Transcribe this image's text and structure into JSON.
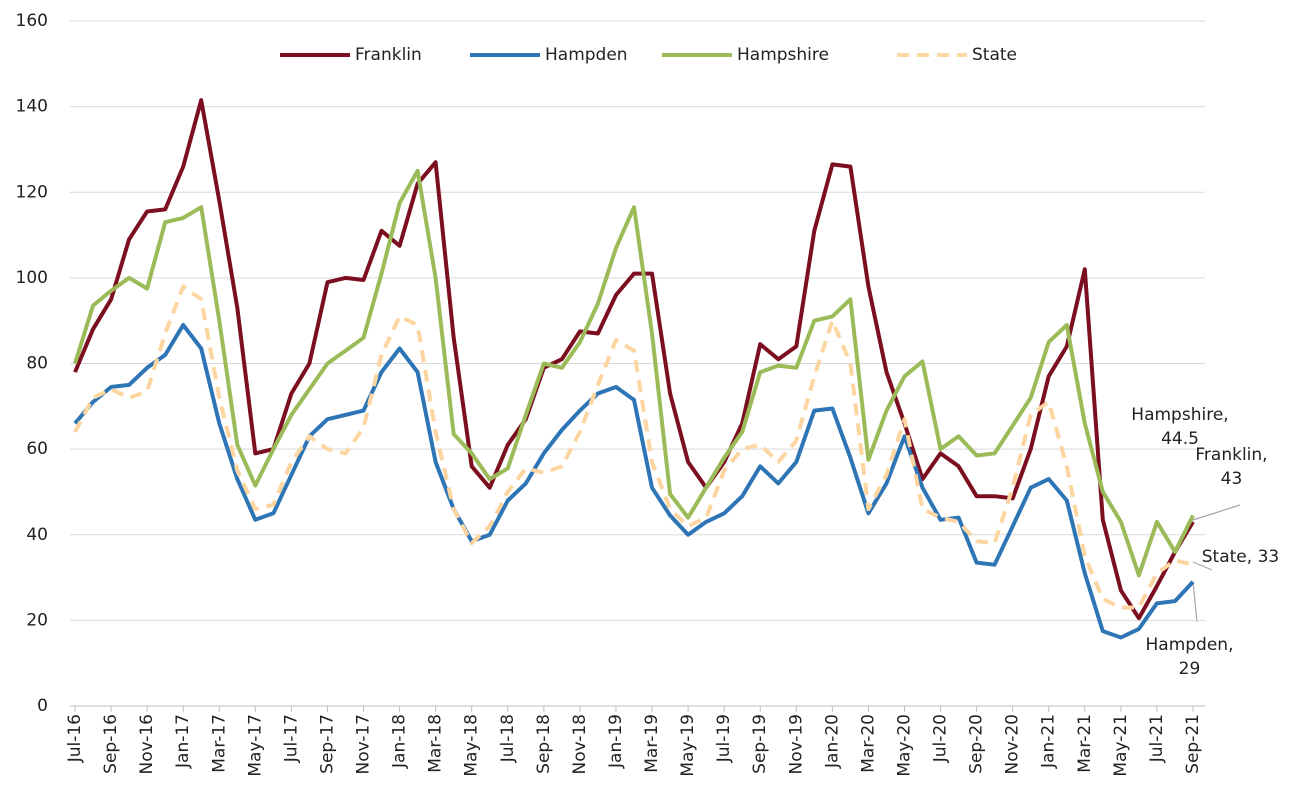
{
  "chart_data": {
    "type": "line",
    "categories": [
      "Jul-16",
      null,
      "Sep-16",
      null,
      "Nov-16",
      null,
      "Jan-17",
      null,
      "Mar-17",
      null,
      "May-17",
      null,
      "Jul-17",
      null,
      "Sep-17",
      null,
      "Nov-17",
      null,
      "Jan-18",
      null,
      "Mar-18",
      null,
      "May-18",
      null,
      "Jul-18",
      null,
      "Sep-18",
      null,
      "Nov-18",
      null,
      "Jan-19",
      null,
      "Mar-19",
      null,
      "May-19",
      null,
      "Jul-19",
      null,
      "Sep-19",
      null,
      "Nov-19",
      null,
      "Jan-20",
      null,
      "Mar-20",
      null,
      "May-20",
      null,
      "Jul-20",
      null,
      "Sep-20",
      null,
      "Nov-20",
      null,
      "Jan-21",
      null,
      "Mar-21",
      null,
      "May-21",
      null,
      "Jul-21",
      null,
      "Sep-21"
    ],
    "series": [
      {
        "name": "Franklin",
        "color": "#7b0e1f",
        "line_style": "solid",
        "values": [
          78,
          88,
          95,
          109,
          115.5,
          116,
          126,
          141.5,
          118,
          93,
          59,
          60,
          73,
          80,
          99,
          100,
          99.5,
          111,
          107.5,
          122,
          127,
          86,
          56,
          51,
          61,
          67,
          79,
          81,
          87.5,
          87,
          96,
          101,
          101,
          73,
          57,
          51,
          57,
          66,
          84.5,
          81,
          84,
          111,
          126.5,
          126,
          98,
          78,
          66,
          53,
          59,
          56,
          49,
          49,
          48.5,
          60,
          77,
          84,
          102,
          43.5,
          27,
          20.5,
          28,
          36,
          43
        ],
        "value_labels": [
          null,
          null,
          null,
          null,
          null,
          null,
          null,
          null,
          null,
          null,
          null,
          null,
          null,
          null,
          null,
          null,
          null,
          null,
          null,
          null,
          null,
          null,
          null,
          null,
          null,
          null,
          null,
          null,
          null,
          null,
          null,
          null,
          null,
          null,
          null,
          null,
          null,
          null,
          null,
          null,
          null,
          null,
          null,
          null,
          null,
          null,
          null,
          null,
          null,
          null,
          null,
          null,
          null,
          null,
          null,
          null,
          null,
          null,
          null,
          null,
          null,
          null,
          "Franklin, 43"
        ]
      },
      {
        "name": "Hampden",
        "color": "#2e75b6",
        "line_style": "solid",
        "values": [
          66,
          71,
          74.5,
          75,
          79,
          82,
          89,
          83.5,
          66,
          53,
          43.5,
          45,
          54,
          63,
          67,
          68,
          69,
          78,
          83.5,
          78,
          57,
          46,
          38.5,
          40,
          48,
          52,
          59,
          64.5,
          69,
          73,
          74.5,
          71.5,
          51,
          44.5,
          40,
          43,
          45,
          49,
          56,
          52,
          57,
          69,
          69.5,
          58,
          45,
          52,
          63,
          51,
          43.5,
          44,
          33.5,
          33,
          42,
          51,
          53,
          48,
          31,
          17.5,
          16,
          18,
          24,
          24.5,
          29
        ],
        "value_labels": [
          null,
          null,
          null,
          null,
          null,
          null,
          null,
          null,
          null,
          null,
          null,
          null,
          null,
          null,
          null,
          null,
          null,
          null,
          null,
          null,
          null,
          null,
          null,
          null,
          null,
          null,
          null,
          null,
          null,
          null,
          null,
          null,
          null,
          null,
          null,
          null,
          null,
          null,
          null,
          null,
          null,
          null,
          null,
          null,
          null,
          null,
          null,
          null,
          null,
          null,
          null,
          null,
          null,
          null,
          null,
          null,
          null,
          null,
          null,
          null,
          null,
          null,
          "Hampden, 29"
        ]
      },
      {
        "name": "Hampshire",
        "color": "#9bbb59",
        "line_style": "solid",
        "values": [
          80,
          93.5,
          97,
          100,
          97.5,
          113,
          114,
          116.5,
          90,
          61,
          51.5,
          60,
          68,
          74,
          80,
          83,
          86,
          101,
          117.5,
          125,
          100,
          63.5,
          59,
          53,
          55.5,
          68,
          80,
          79,
          85,
          94,
          107,
          116.5,
          87,
          49.5,
          44,
          51,
          58,
          64,
          78,
          79.5,
          79,
          90,
          91,
          95,
          57.5,
          69,
          77,
          80.5,
          60,
          63,
          58.5,
          59,
          65.5,
          72,
          85,
          89,
          66,
          50,
          43,
          30.5,
          43,
          36,
          44.5
        ],
        "value_labels": [
          null,
          null,
          null,
          null,
          null,
          null,
          null,
          null,
          null,
          null,
          null,
          null,
          null,
          null,
          null,
          null,
          null,
          null,
          null,
          null,
          null,
          null,
          null,
          null,
          null,
          null,
          null,
          null,
          null,
          null,
          null,
          null,
          null,
          null,
          null,
          null,
          null,
          null,
          null,
          null,
          null,
          null,
          null,
          null,
          null,
          null,
          null,
          null,
          null,
          null,
          null,
          null,
          null,
          null,
          null,
          null,
          null,
          null,
          null,
          null,
          null,
          null,
          "Hampshire, 44.5"
        ]
      },
      {
        "name": "State",
        "color": "#fdd5a0",
        "line_style": "dashed",
        "values": [
          64,
          72,
          74,
          72,
          73.5,
          87,
          98,
          95,
          72,
          55,
          46,
          47,
          57,
          63,
          60,
          59,
          65,
          82,
          91,
          89,
          64,
          46,
          38,
          42,
          50,
          55.5,
          54.5,
          56,
          64,
          75,
          85.5,
          83,
          57,
          46,
          42,
          44,
          55,
          60,
          61,
          57,
          62,
          77,
          90,
          80,
          46,
          54,
          67,
          46,
          44,
          43,
          38.5,
          38,
          51,
          68,
          71,
          56,
          35,
          25,
          23,
          23,
          31,
          34,
          33
        ],
        "value_labels": [
          null,
          null,
          null,
          null,
          null,
          null,
          null,
          null,
          null,
          null,
          null,
          null,
          null,
          null,
          null,
          null,
          null,
          null,
          null,
          null,
          null,
          null,
          null,
          null,
          null,
          null,
          null,
          null,
          null,
          null,
          null,
          null,
          null,
          null,
          null,
          null,
          null,
          null,
          null,
          null,
          null,
          null,
          null,
          null,
          null,
          null,
          null,
          null,
          null,
          null,
          null,
          null,
          null,
          null,
          null,
          null,
          null,
          null,
          null,
          null,
          null,
          null,
          "State, 33"
        ]
      }
    ],
    "ylim": [
      0,
      160
    ],
    "yticks": [
      0,
      20,
      40,
      60,
      80,
      100,
      120,
      140,
      160
    ],
    "grid": true,
    "legend": "top"
  }
}
